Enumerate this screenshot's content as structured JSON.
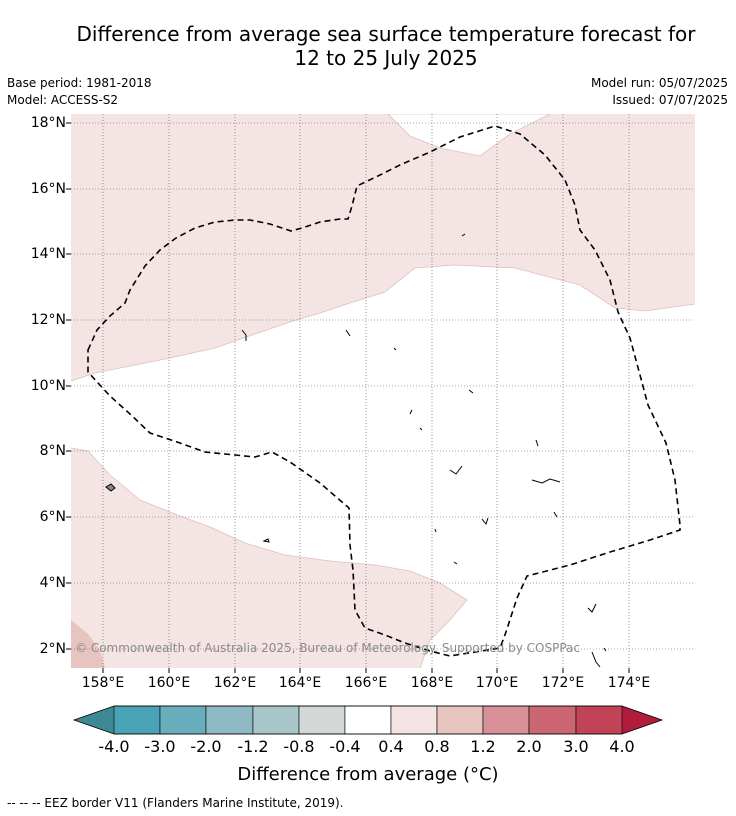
{
  "title_line1": "Difference from average sea surface temperature forecast for",
  "title_line2": "12 to 25 July 2025",
  "base_period": "Base period: 1981-2018",
  "model": "Model: ACCESS-S2",
  "model_run": "Model run: 05/07/2025",
  "issued": "Issued: 07/07/2025",
  "lat_labels": [
    "18°N",
    "16°N",
    "14°N",
    "12°N",
    "10°N",
    "8°N",
    "6°N",
    "4°N",
    "2°N"
  ],
  "lon_labels": [
    "158°E",
    "160°E",
    "162°E",
    "164°E",
    "166°E",
    "168°E",
    "170°E",
    "172°E",
    "174°E"
  ],
  "copyright": "© Commonwealth of Australia 2025, Bureau of Meteorology. Supported by COSPPac",
  "colorbar": {
    "title": "Difference from average (°C)",
    "ticks": [
      "-4.0",
      "-3.0",
      "-2.0",
      "-1.2",
      "-0.8",
      "-0.4",
      "0.4",
      "0.8",
      "1.2",
      "2.0",
      "3.0",
      "4.0"
    ],
    "colors": [
      "#3e8896",
      "#4aa3b5",
      "#6aaebd",
      "#8db9c4",
      "#a9c6ca",
      "#d3d7d7",
      "#ffffff",
      "#f4e5e4",
      "#e8c4c1",
      "#d98f97",
      "#cd6673",
      "#c04356",
      "#b01c3c"
    ]
  },
  "legend_note": "-- -- -- EEZ border V11 (Flanders Marine Institute, 2019)."
}
